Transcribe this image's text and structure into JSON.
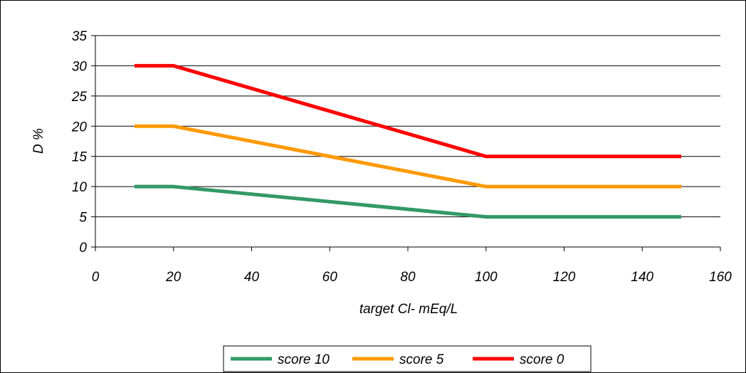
{
  "chart_data": {
    "type": "line",
    "title": "",
    "xlabel": "target Cl- mEq/L",
    "ylabel": "D %",
    "xlim": [
      0,
      160
    ],
    "ylim": [
      0,
      35
    ],
    "xticks": [
      0,
      20,
      40,
      60,
      80,
      100,
      120,
      140,
      160
    ],
    "yticks": [
      0,
      5,
      10,
      15,
      20,
      25,
      30,
      35
    ],
    "grid": "horizontal",
    "legend_position": "bottom",
    "series": [
      {
        "name": "score 10",
        "color": "#339966",
        "x": [
          10,
          20,
          100,
          150
        ],
        "y": [
          10,
          10,
          5,
          5
        ]
      },
      {
        "name": "score 5",
        "color": "#ff9900",
        "x": [
          10,
          20,
          100,
          150
        ],
        "y": [
          20,
          20,
          10,
          10
        ]
      },
      {
        "name": "score 0",
        "color": "#ff0000",
        "x": [
          10,
          20,
          100,
          150
        ],
        "y": [
          30,
          30,
          15,
          15
        ]
      }
    ]
  }
}
